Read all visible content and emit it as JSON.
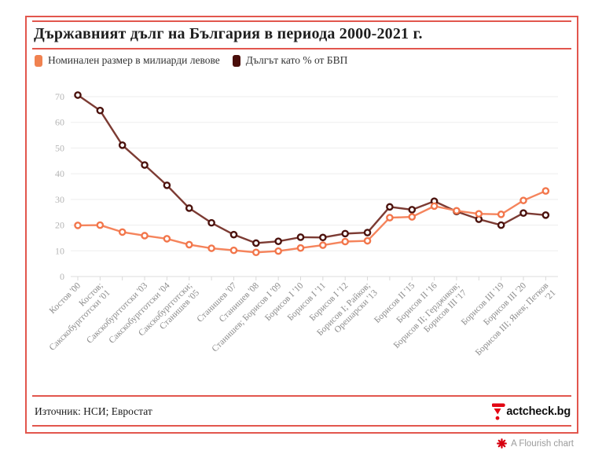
{
  "header": {
    "title": "Държавният дълг на България в периода 2000-2021 г."
  },
  "legend": [
    {
      "label": "Номинален размер в милиарди левове",
      "color": "#f08250"
    },
    {
      "label": "Дългът като % от БВП",
      "color": "#4a0e0a"
    }
  ],
  "chart_data": {
    "type": "line",
    "title": "Държавният дълг на България в периода 2000-2021 г.",
    "years": [
      2000,
      2001,
      2002,
      2003,
      2004,
      2005,
      2006,
      2007,
      2008,
      2009,
      2010,
      2011,
      2012,
      2013,
      2014,
      2015,
      2016,
      2017,
      2018,
      2019,
      2020,
      2021
    ],
    "tick_labels": [
      [
        "Костов '00"
      ],
      [
        "Костов;",
        "Сакскобургготски '01"
      ],
      null,
      [
        "Сакскобургготски '03"
      ],
      [
        "Сакскобургготски '04"
      ],
      [
        "Сакскобургготски;",
        "Станишев '05"
      ],
      null,
      [
        "Станишев '07"
      ],
      [
        "Станишев '08"
      ],
      [
        "Станишев; Борисов I '09"
      ],
      [
        "Борисов I '10"
      ],
      [
        "Борисов I '11"
      ],
      [
        "Борисов I '12"
      ],
      [
        "Борисов I; Райков;",
        "Орешарски '13"
      ],
      null,
      [
        "Борисов II '15"
      ],
      [
        "Борисов II '16"
      ],
      [
        "Борисов II; Герджиков;",
        "Борисов III '17"
      ],
      null,
      [
        "Борисов III '19"
      ],
      [
        "Борисов III '20"
      ],
      [
        "Борисов III; Янев; Петков",
        "'21"
      ]
    ],
    "series": [
      {
        "name": "Дългът като % от БВП",
        "line_color": "#7c3b33",
        "marker_color": "#4b120d",
        "values": [
          70.6,
          64.6,
          51.1,
          43.4,
          35.5,
          26.6,
          20.9,
          16.3,
          13.0,
          13.7,
          15.3,
          15.2,
          16.7,
          17.1,
          27.1,
          26.0,
          29.3,
          25.3,
          22.3,
          20.0,
          24.7,
          23.9
        ]
      },
      {
        "name": "Номинален размер в милиарди левове",
        "line_color": "#f5845c",
        "marker_color": "#f2764b",
        "values": [
          19.9,
          20.0,
          17.3,
          15.9,
          14.7,
          12.4,
          11.0,
          10.2,
          9.4,
          9.9,
          11.1,
          12.2,
          13.6,
          13.9,
          22.9,
          23.2,
          27.4,
          25.6,
          24.4,
          24.2,
          29.6,
          33.3
        ]
      }
    ],
    "ylim": [
      0,
      75
    ],
    "yticks": [
      0,
      10,
      20,
      30,
      40,
      50,
      60,
      70
    ],
    "grid": "horizontal only",
    "legend_position": "top-left"
  },
  "footer": {
    "source": "Източник: НСИ; Евростат",
    "logo_text": "actcheck.bg"
  },
  "attribution": {
    "label": "A Flourish chart"
  },
  "colors": {
    "frame_red": "#e2564d",
    "factcheck_red": "#e30613",
    "grid_gray": "#ededed"
  }
}
